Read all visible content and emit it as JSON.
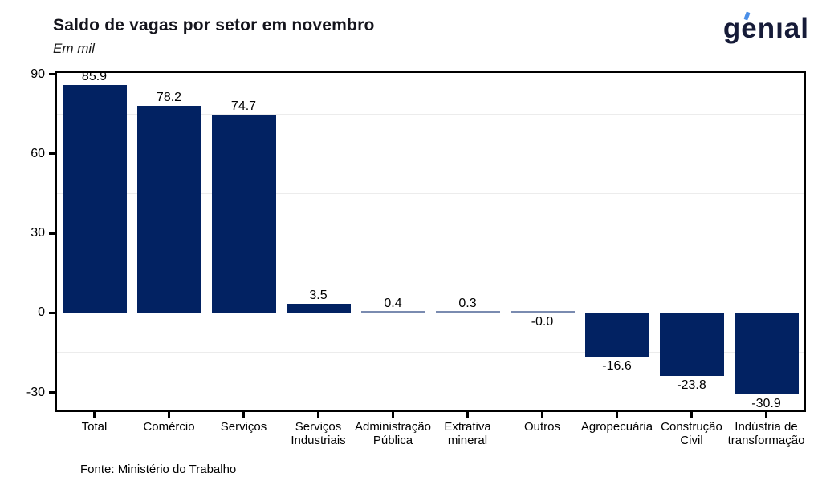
{
  "header": {
    "title": "Saldo de vagas por setor em novembro",
    "subtitle": "Em mil",
    "logo_text": "genıal"
  },
  "footer": {
    "source": "Fonte: Ministério do Trabalho"
  },
  "chart_data": {
    "type": "bar",
    "title": "Saldo de vagas por setor em novembro",
    "subtitle_unit": "Em mil",
    "categories": [
      "Total",
      "Comércio",
      "Serviços",
      "Serviços\nIndustriais",
      "Administração\nPública",
      "Extrativa\nmineral",
      "Outros",
      "Agropecuária",
      "Construção\nCivil",
      "Indústria de\ntransformação"
    ],
    "values": [
      85.9,
      78.2,
      74.7,
      3.5,
      0.4,
      0.3,
      -0.0,
      -16.6,
      -23.8,
      -30.9
    ],
    "bar_labels": [
      "85.9",
      "78.2",
      "74.7",
      "3.5",
      "0.4",
      "0.3",
      "-0.0",
      "-16.6",
      "-23.8",
      "-30.9"
    ],
    "xlabel": "",
    "ylabel": "",
    "yticks": [
      90,
      60,
      30,
      0,
      -30
    ],
    "minor_gridlines": [
      75,
      45,
      15,
      -15
    ],
    "ylim": [
      -36.5,
      90.5
    ],
    "grid": "faint horizontal minor gridlines only",
    "legend": "none",
    "colors": {
      "bar": "#022262",
      "near_zero_bar": "#7a8bb0",
      "accent_blue": "#4a8fe8",
      "logo_navy": "#161b38"
    },
    "source": "Fonte: Ministério do Trabalho"
  }
}
